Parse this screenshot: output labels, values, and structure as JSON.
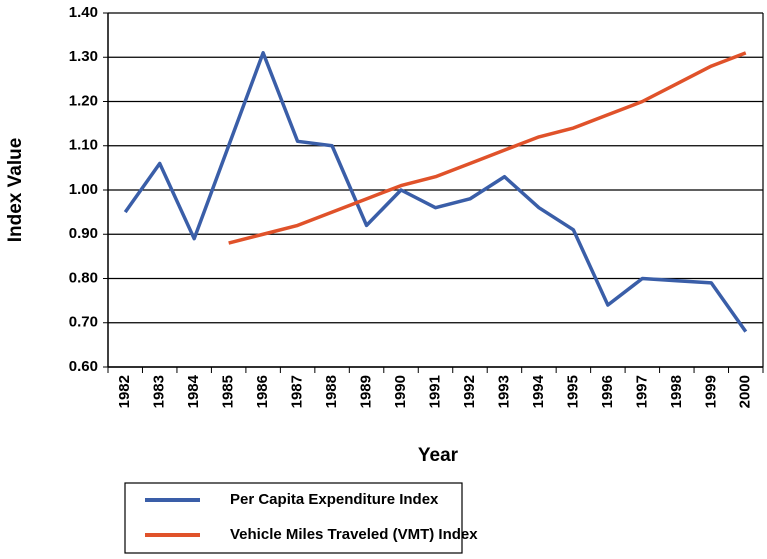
{
  "chart_data": {
    "type": "line",
    "x_label": "Year",
    "y_label": "Index Value",
    "categories": [
      "1982",
      "1983",
      "1984",
      "1985",
      "1986",
      "1987",
      "1988",
      "1989",
      "1990",
      "1991",
      "1992",
      "1993",
      "1994",
      "1995",
      "1996",
      "1997",
      "1998",
      "1999",
      "2000"
    ],
    "series": [
      {
        "name": "Per Capita Expenditure Index",
        "color": "#3a5ea8",
        "values": [
          0.95,
          1.06,
          0.89,
          1.1,
          1.31,
          1.11,
          1.1,
          0.92,
          1.0,
          0.96,
          0.98,
          1.03,
          0.96,
          0.91,
          0.74,
          0.8,
          0.795,
          0.79,
          0.68
        ]
      },
      {
        "name": "Vehicle Miles Traveled (VMT) Index",
        "color": "#e0522a",
        "values": [
          null,
          null,
          null,
          0.88,
          0.9,
          0.92,
          0.95,
          0.98,
          1.01,
          1.03,
          1.06,
          1.09,
          1.12,
          1.14,
          1.17,
          1.2,
          1.24,
          1.28,
          1.31
        ]
      }
    ],
    "ylim": [
      0.6,
      1.4
    ],
    "yticks": [
      {
        "value": 0.6,
        "label": "0.60"
      },
      {
        "value": 0.7,
        "label": "0.70"
      },
      {
        "value": 0.8,
        "label": "0.80"
      },
      {
        "value": 0.9,
        "label": "0.90"
      },
      {
        "value": 1.0,
        "label": "1.00"
      },
      {
        "value": 1.1,
        "label": "1.10"
      },
      {
        "value": 1.2,
        "label": "1.20"
      },
      {
        "value": 1.3,
        "label": "1.30"
      },
      {
        "value": 1.4,
        "label": "1.40"
      }
    ],
    "grid": true,
    "legend": "bottom"
  }
}
